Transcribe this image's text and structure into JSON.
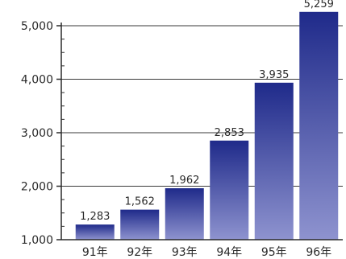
{
  "chart_data": {
    "type": "bar",
    "title": "",
    "xlabel": "",
    "ylabel": "",
    "categories": [
      "91年",
      "92年",
      "93年",
      "94年",
      "95年",
      "96年"
    ],
    "values": [
      1283,
      1562,
      1962,
      2853,
      3935,
      5259
    ],
    "data_labels": [
      "1,283",
      "1,562",
      "1,962",
      "2,853",
      "3,935",
      "5,259"
    ],
    "ylim": [
      1000,
      5000
    ],
    "yticks": [
      1000,
      2000,
      3000,
      4000,
      5000
    ],
    "ytick_labels": [
      "1,000",
      "2,000",
      "3,000",
      "4,000",
      "5,000"
    ],
    "grid": true,
    "legend": "none",
    "colors": {
      "bar_top": "#1f2a8a",
      "bar_bottom": "#8e93cf",
      "axis": "#2b2b2b"
    }
  }
}
